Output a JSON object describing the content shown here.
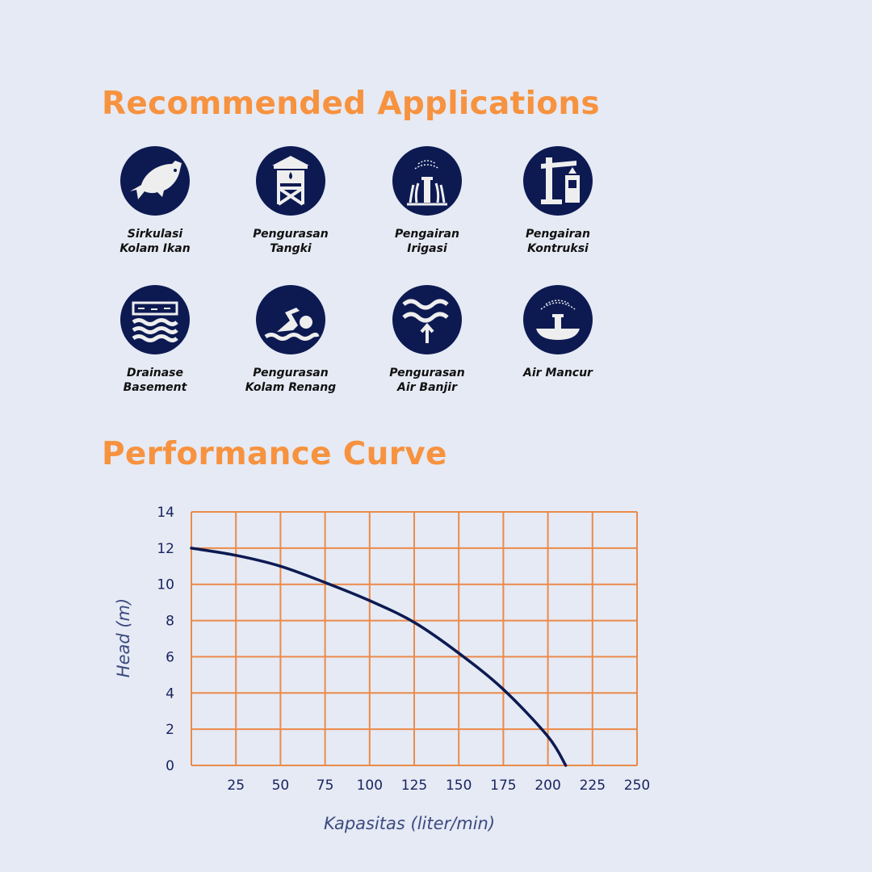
{
  "titles": {
    "applications": "Recommended Applications",
    "performance": "Performance Curve"
  },
  "colors": {
    "accent": "#f7923f",
    "icon_bg": "#0d1a52",
    "grid": "#ec8a4a",
    "curve": "#0d1a52",
    "background": "#e5eaf4"
  },
  "applications": [
    {
      "line1": "Sirkulasi",
      "line2": "Kolam Ikan",
      "icon": "fish-icon"
    },
    {
      "line1": "Pengurasan",
      "line2": "Tangki",
      "icon": "water-tower-icon"
    },
    {
      "line1": "Pengairan",
      "line2": "Irigasi",
      "icon": "sprinkler-icon"
    },
    {
      "line1": "Pengairan",
      "line2": "Kontruksi",
      "icon": "construction-crane-icon"
    },
    {
      "line1": "Drainase",
      "line2": "Basement",
      "icon": "basement-drain-icon"
    },
    {
      "line1": "Pengurasan",
      "line2": "Kolam Renang",
      "icon": "swimmer-icon"
    },
    {
      "line1": "Pengurasan",
      "line2": "Air Banjir",
      "icon": "flood-water-icon"
    },
    {
      "line1": "Air Mancur",
      "line2": "",
      "icon": "fountain-icon"
    }
  ],
  "chart_data": {
    "type": "line",
    "xlabel": "Kapasitas (liter/min)",
    "ylabel": "Head (m)",
    "xlim": [
      0,
      250
    ],
    "ylim": [
      0,
      14
    ],
    "x_ticks": [
      25,
      50,
      75,
      100,
      125,
      150,
      175,
      200,
      225,
      250
    ],
    "y_ticks": [
      0,
      2,
      4,
      6,
      8,
      10,
      12,
      14
    ],
    "grid": true,
    "series": [
      {
        "x": [
          0,
          25,
          50,
          75,
          100,
          125,
          150,
          175,
          200,
          210
        ],
        "y": [
          12,
          11.6,
          11.0,
          10.1,
          9.1,
          7.9,
          6.2,
          4.2,
          1.6,
          0
        ]
      }
    ]
  }
}
